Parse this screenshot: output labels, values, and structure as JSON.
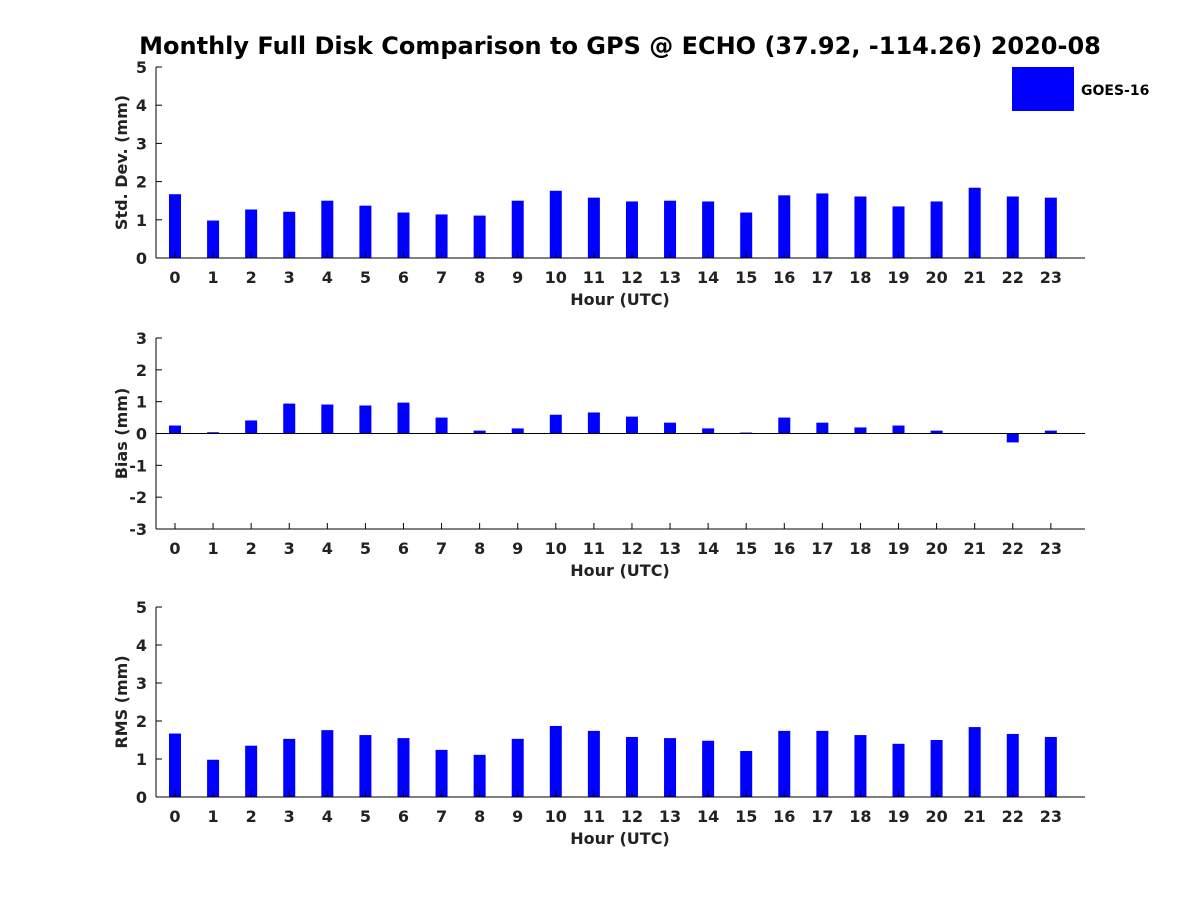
{
  "figure": {
    "title": "Monthly Full Disk Comparison to GPS @ ECHO (37.92, -114.26) 2020-08"
  },
  "legend": {
    "label": "GOES-16",
    "color": "#0000ff"
  },
  "chart_data": [
    {
      "type": "bar",
      "name": "std",
      "xlabel": "Hour (UTC)",
      "ylabel": "Std. Dev. (mm)",
      "ylim": [
        0,
        5
      ],
      "yticks": [
        0,
        1,
        2,
        3,
        4,
        5
      ],
      "categories": [
        "0",
        "1",
        "2",
        "3",
        "4",
        "5",
        "6",
        "7",
        "8",
        "9",
        "10",
        "11",
        "12",
        "13",
        "14",
        "15",
        "16",
        "17",
        "18",
        "19",
        "20",
        "21",
        "22",
        "23"
      ],
      "series": [
        {
          "name": "GOES-16",
          "values": [
            1.67,
            0.98,
            1.27,
            1.21,
            1.5,
            1.37,
            1.19,
            1.14,
            1.11,
            1.5,
            1.76,
            1.58,
            1.48,
            1.5,
            1.48,
            1.19,
            1.64,
            1.69,
            1.61,
            1.35,
            1.48,
            1.84,
            1.61,
            1.58
          ]
        }
      ]
    },
    {
      "type": "bar",
      "name": "bias",
      "xlabel": "Hour (UTC)",
      "ylabel": "Bias (mm)",
      "ylim": [
        -3,
        3
      ],
      "yticks": [
        -3,
        -2,
        -1,
        0,
        1,
        2,
        3
      ],
      "zero_line": true,
      "categories": [
        "0",
        "1",
        "2",
        "3",
        "4",
        "5",
        "6",
        "7",
        "8",
        "9",
        "10",
        "11",
        "12",
        "13",
        "14",
        "15",
        "16",
        "17",
        "18",
        "19",
        "20",
        "21",
        "22",
        "23"
      ],
      "series": [
        {
          "name": "GOES-16",
          "values": [
            0.25,
            0.04,
            0.41,
            0.94,
            0.91,
            0.88,
            0.97,
            0.5,
            0.09,
            0.16,
            0.59,
            0.66,
            0.53,
            0.34,
            0.16,
            0.03,
            0.5,
            0.34,
            0.19,
            0.25,
            0.09,
            0.0,
            -0.28,
            0.09
          ]
        }
      ]
    },
    {
      "type": "bar",
      "name": "rms",
      "xlabel": "Hour (UTC)",
      "ylabel": "RMS (mm)",
      "ylim": [
        0,
        5
      ],
      "yticks": [
        0,
        1,
        2,
        3,
        4,
        5
      ],
      "categories": [
        "0",
        "1",
        "2",
        "3",
        "4",
        "5",
        "6",
        "7",
        "8",
        "9",
        "10",
        "11",
        "12",
        "13",
        "14",
        "15",
        "16",
        "17",
        "18",
        "19",
        "20",
        "21",
        "22",
        "23"
      ],
      "series": [
        {
          "name": "GOES-16",
          "values": [
            1.67,
            0.98,
            1.35,
            1.53,
            1.76,
            1.63,
            1.55,
            1.24,
            1.11,
            1.53,
            1.87,
            1.74,
            1.58,
            1.55,
            1.48,
            1.21,
            1.74,
            1.74,
            1.63,
            1.4,
            1.5,
            1.84,
            1.66,
            1.58
          ]
        }
      ]
    }
  ]
}
